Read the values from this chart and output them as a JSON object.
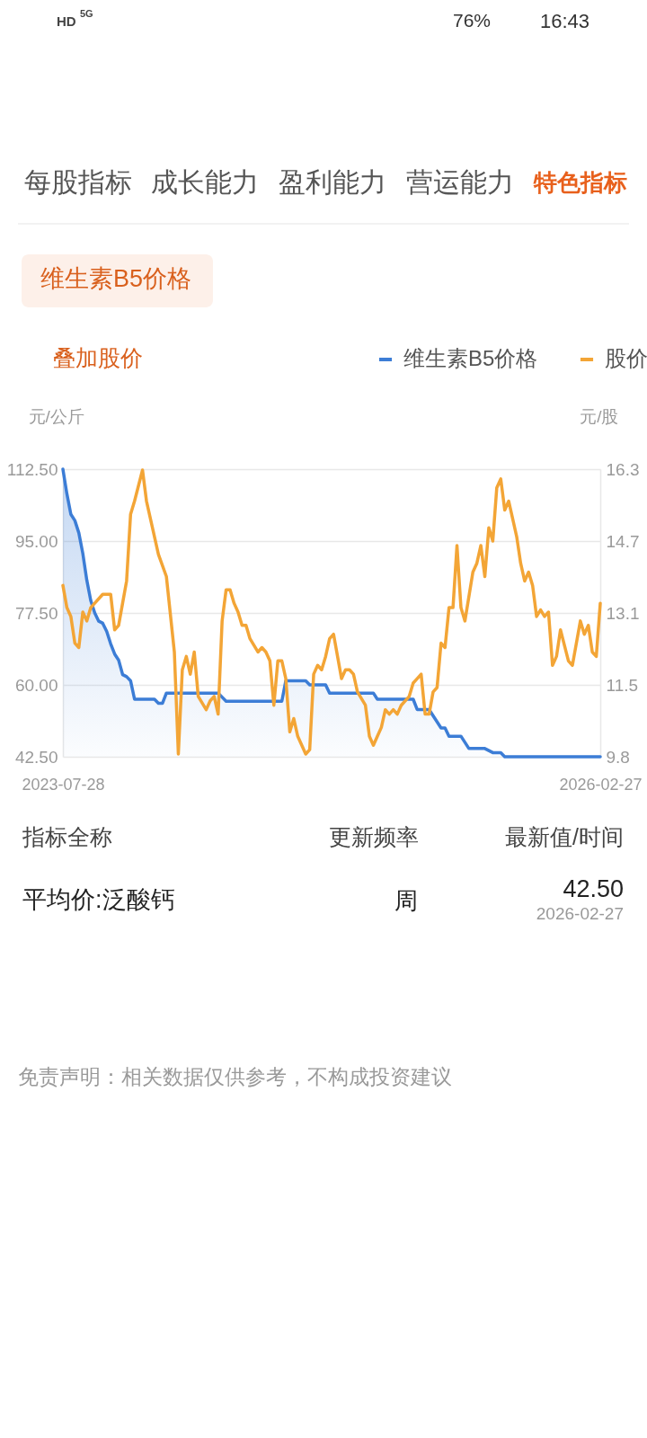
{
  "chart_data": {
    "type": "line",
    "title": "维生素B5价格",
    "ylabel": "元/公斤",
    "y2label": "元/股",
    "xlim": [
      "2023-07-28",
      "2026-02-27"
    ],
    "xticks": [
      "2023-07-28",
      "2026-02-27"
    ],
    "ylim": [
      42.5,
      112.5
    ],
    "yticks": [
      {
        "value": 42.5,
        "label": "42.50"
      },
      {
        "value": 60,
        "label": "60.00"
      },
      {
        "value": 77.5,
        "label": "77.50"
      },
      {
        "value": 95,
        "label": "95.00"
      },
      {
        "value": 112.5,
        "label": "112.50"
      }
    ],
    "y2lim": [
      9.84,
      16.32
    ],
    "y2ticks": [
      {
        "value": 9.84,
        "label": "9.8"
      },
      {
        "value": 11.46,
        "label": "11.5"
      },
      {
        "value": 13.08,
        "label": "13.1"
      },
      14.7,
      {
        "value": 16.32,
        "label": "16.3"
      }
    ],
    "grid": "y",
    "legend": "top right",
    "series": [
      {
        "name": "维生素B5价格",
        "type": "area",
        "color": "#3c7dd6",
        "x": [
          "2023-07-28",
          "2023-08-04",
          "2023-08-11",
          "2023-08-18",
          "2023-08-25",
          "2023-09-01",
          "2023-09-08",
          "2023-09-15",
          "2023-09-22",
          "2023-09-29",
          "2023-10-06",
          "2023-10-13",
          "2023-10-20",
          "2023-10-27",
          "2023-11-03",
          "2023-11-10",
          "2023-11-17",
          "2023-11-24",
          "2023-12-01",
          "2024-01-05",
          "2024-01-12",
          "2024-01-19",
          "2024-01-26",
          "2024-04-26",
          "2024-05-10",
          "2024-08-16",
          "2024-08-23",
          "2024-09-27",
          "2024-10-04",
          "2024-11-01",
          "2024-11-08",
          "2025-01-24",
          "2025-01-31",
          "2025-04-04",
          "2025-04-11",
          "2025-05-02",
          "2025-05-23",
          "2025-05-30",
          "2025-06-06",
          "2025-06-27",
          "2025-07-11",
          "2025-08-08",
          "2025-08-22",
          "2025-09-05",
          "2025-09-12",
          "2026-02-27"
        ],
        "values": [
          112.5,
          106.5,
          101.5,
          100.0,
          97.0,
          92.0,
          85.5,
          80.5,
          77.5,
          75.5,
          75.0,
          73.0,
          70.0,
          67.5,
          66.0,
          62.5,
          62.0,
          61.0,
          56.5,
          56.5,
          55.5,
          55.5,
          58.0,
          58.0,
          56.0,
          56.0,
          61.0,
          61.0,
          60.0,
          60.0,
          58.0,
          58.0,
          56.5,
          56.5,
          54.0,
          54.0,
          49.5,
          49.5,
          47.5,
          47.5,
          44.5,
          44.5,
          43.5,
          43.5,
          42.5,
          42.5
        ]
      },
      {
        "name": "股价",
        "color": "#f3a536",
        "axis": "y2",
        "x": [
          "2023-07-28",
          "2023-08-04",
          "2023-08-11",
          "2023-08-18",
          "2023-08-25",
          "2023-09-01",
          "2023-09-08",
          "2023-09-15",
          "2023-09-22",
          "2023-10-06",
          "2023-10-13",
          "2023-10-20",
          "2023-10-27",
          "2023-11-03",
          "2023-11-10",
          "2023-11-17",
          "2023-11-24",
          "2023-12-01",
          "2023-12-15",
          "2023-12-22",
          "2024-01-05",
          "2024-01-12",
          "2024-01-26",
          "2024-02-09",
          "2024-02-16",
          "2024-02-23",
          "2024-03-01",
          "2024-03-08",
          "2024-03-15",
          "2024-03-22",
          "2024-04-05",
          "2024-04-12",
          "2024-04-19",
          "2024-04-26",
          "2024-05-03",
          "2024-05-10",
          "2024-05-17",
          "2024-05-24",
          "2024-05-31",
          "2024-06-07",
          "2024-06-14",
          "2024-06-21",
          "2024-07-05",
          "2024-07-12",
          "2024-07-19",
          "2024-07-26",
          "2024-08-02",
          "2024-08-09",
          "2024-08-16",
          "2024-08-23",
          "2024-08-30",
          "2024-09-06",
          "2024-09-13",
          "2024-09-27",
          "2024-10-04",
          "2024-10-11",
          "2024-10-18",
          "2024-10-25",
          "2024-11-01",
          "2024-11-08",
          "2024-11-15",
          "2024-11-22",
          "2024-11-29",
          "2024-12-06",
          "2024-12-13",
          "2024-12-20",
          "2024-12-27",
          "2025-01-10",
          "2025-01-17",
          "2025-01-24",
          "2025-01-31",
          "2025-02-07",
          "2025-02-14",
          "2025-02-21",
          "2025-02-28",
          "2025-03-07",
          "2025-03-14",
          "2025-03-28",
          "2025-04-04",
          "2025-04-11",
          "2025-04-18",
          "2025-04-25",
          "2025-05-02",
          "2025-05-09",
          "2025-05-16",
          "2025-05-23",
          "2025-05-30",
          "2025-06-06",
          "2025-06-13",
          "2025-06-20",
          "2025-06-27",
          "2025-07-04",
          "2025-07-18",
          "2025-07-25",
          "2025-08-01",
          "2025-08-08",
          "2025-08-15",
          "2025-08-22",
          "2025-08-29",
          "2025-09-05",
          "2025-09-12",
          "2025-09-19",
          "2025-10-03",
          "2025-10-10",
          "2025-10-17",
          "2025-10-24",
          "2025-10-31",
          "2025-11-07",
          "2025-11-14",
          "2025-11-21",
          "2025-11-28",
          "2025-12-05",
          "2025-12-12",
          "2025-12-19",
          "2026-01-02",
          "2026-01-09",
          "2026-01-23",
          "2026-01-30",
          "2026-02-06",
          "2026-02-13",
          "2026-02-20",
          "2026-02-27"
        ],
        "values": [
          13.7,
          13.2,
          13.0,
          12.4,
          12.3,
          13.1,
          12.9,
          13.2,
          13.3,
          13.5,
          13.5,
          13.5,
          12.7,
          12.8,
          13.3,
          13.8,
          15.3,
          15.6,
          16.3,
          15.6,
          14.8,
          14.4,
          13.9,
          12.2,
          9.9,
          11.8,
          12.1,
          11.7,
          12.2,
          11.2,
          10.9,
          11.1,
          11.2,
          10.8,
          12.9,
          13.6,
          13.6,
          13.3,
          13.1,
          12.8,
          12.8,
          12.5,
          12.2,
          12.3,
          12.2,
          12.0,
          11.0,
          12.0,
          12.0,
          11.6,
          10.4,
          10.7,
          10.3,
          9.9,
          10.0,
          11.7,
          11.9,
          11.8,
          12.1,
          12.5,
          12.6,
          12.1,
          11.6,
          11.8,
          11.8,
          11.7,
          11.3,
          11.0,
          10.3,
          10.1,
          10.3,
          10.5,
          10.9,
          10.8,
          10.9,
          10.8,
          11.0,
          11.2,
          11.5,
          11.6,
          11.7,
          10.8,
          10.8,
          11.3,
          11.4,
          12.4,
          12.3,
          13.2,
          13.2,
          14.6,
          13.2,
          12.9,
          14.0,
          14.2,
          14.6,
          13.9,
          15.0,
          14.7,
          15.9,
          16.1,
          15.4,
          15.6,
          14.8,
          14.2,
          13.8,
          14.0,
          13.7,
          13.0,
          13.15,
          13.0,
          13.1,
          11.9,
          12.1,
          12.7,
          12.0,
          11.9,
          12.9,
          12.6,
          12.8,
          12.2,
          12.1,
          13.3
        ]
      }
    ],
    "annotations": [
      "HD",
      "5G",
      "76%",
      "16:43",
      "每股指标",
      "成长能力",
      "盈利能力",
      "营运能力",
      "特色指标",
      "叠加股价",
      "指标全称",
      "更新频率",
      "最新值/时间",
      "平均价:泛酸钙",
      "周",
      "42.50",
      "2026-02-27",
      "免责声明：相关数据仅供参考，不构成投资建议"
    ]
  }
}
